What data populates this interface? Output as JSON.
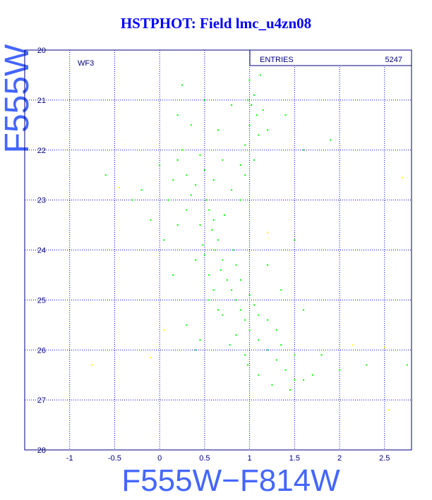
{
  "chart_data": {
    "type": "scatter",
    "title": "HSTPHOT: Field lmc_u4zn08",
    "xlabel": "F555W−F814W",
    "ylabel": "F555W",
    "annotation": "WF3",
    "stats": {
      "label": "ENTRIES",
      "value": 5247
    },
    "xlim": [
      -1.5,
      2.8
    ],
    "ylim": [
      28,
      20
    ],
    "xticks": [
      -1,
      -0.5,
      0,
      0.5,
      1,
      1.5,
      2,
      2.5
    ],
    "yticks": [
      20,
      21,
      22,
      23,
      24,
      25,
      26,
      27,
      28
    ],
    "grid": true,
    "series": [
      {
        "color": "#00ff00",
        "x": [
          0.52,
          0.55,
          0.6,
          0.58,
          0.65,
          0.62,
          0.7,
          0.68,
          0.75,
          0.8,
          0.85,
          0.9,
          0.95,
          1.0,
          1.1,
          1.2,
          1.3,
          1.4,
          1.5,
          1.6,
          0.45,
          0.72,
          0.5,
          0.85,
          0.6,
          1.0,
          0.7,
          1.1,
          0.85,
          1.3,
          0.95,
          1.5,
          1.1,
          1.7,
          1.25,
          0.78,
          0.65,
          0.9,
          0.55,
          1.05,
          1.2,
          1.35,
          0.98,
          1.45,
          0.82,
          0.48,
          0.2,
          0.3,
          0.4,
          0.15,
          0.35,
          0.5,
          0.25,
          0.45,
          0.6,
          0.1,
          0.3,
          0.05,
          0.2,
          0.4,
          0.15,
          -0.1,
          -0.3,
          -0.2,
          0.0,
          0.7,
          0.8,
          0.9,
          0.95,
          1.0,
          1.05,
          1.02,
          1.08,
          1.0,
          1.1,
          0.95,
          1.05,
          1.12,
          0.98,
          1.15,
          0.9,
          1.2,
          0.2,
          0.25,
          0.35,
          0.5,
          0.65,
          0.8,
          1.4,
          1.6,
          1.9,
          -0.6,
          1.5,
          1.2,
          1.8,
          2.0,
          2.3,
          2.75,
          0.3,
          0.45,
          1.6,
          1.35,
          0.4,
          0.55
        ],
        "values": [
          23.0,
          23.2,
          23.4,
          23.6,
          23.8,
          24.0,
          24.2,
          24.4,
          24.6,
          24.8,
          25.0,
          25.2,
          25.4,
          25.6,
          25.8,
          26.0,
          26.2,
          26.4,
          26.6,
          26.6,
          23.5,
          23.3,
          24.1,
          24.3,
          24.8,
          24.9,
          25.3,
          25.3,
          25.7,
          25.6,
          26.1,
          26.1,
          26.5,
          26.5,
          26.7,
          25.9,
          25.2,
          24.6,
          24.5,
          25.1,
          25.4,
          25.9,
          26.3,
          26.8,
          24.0,
          23.9,
          22.2,
          22.5,
          22.7,
          22.6,
          22.9,
          22.4,
          22.0,
          22.1,
          22.6,
          23.0,
          23.2,
          23.8,
          23.5,
          24.2,
          24.5,
          23.4,
          23.0,
          22.8,
          22.3,
          22.2,
          22.8,
          23.0,
          22.5,
          20.6,
          20.9,
          21.1,
          21.3,
          21.5,
          21.7,
          21.9,
          22.2,
          20.5,
          21.0,
          21.2,
          22.3,
          21.6,
          21.3,
          20.7,
          21.5,
          21.0,
          21.6,
          21.1,
          21.3,
          22.0,
          21.8,
          22.5,
          23.8,
          24.3,
          26.1,
          26.4,
          26.3,
          26.3,
          25.5,
          25.8,
          25.2,
          24.8,
          26.0,
          25.0
        ]
      },
      {
        "color": "#ffff00",
        "x": [
          -0.45,
          2.7,
          -0.75,
          2.55,
          2.15,
          1.2,
          0.05,
          2.5,
          -0.1
        ],
        "values": [
          22.75,
          22.55,
          26.3,
          27.2,
          25.9,
          23.65,
          25.6,
          25.95,
          26.15
        ]
      }
    ]
  }
}
